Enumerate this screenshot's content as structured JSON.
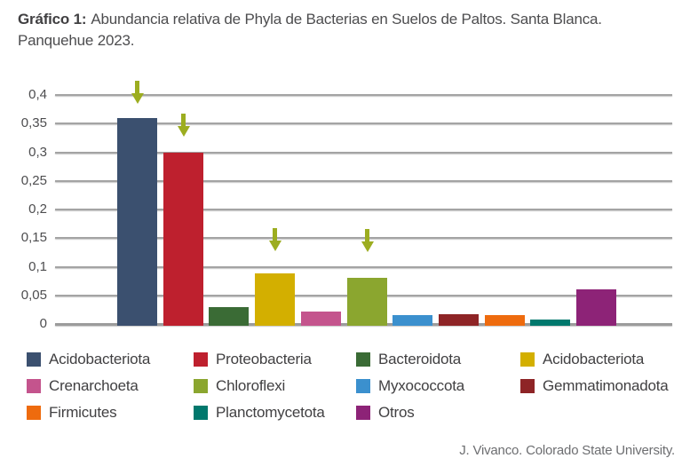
{
  "header": {
    "prefix": "Gráfico 1:",
    "line1": "Abundancia relativa de Phyla de Bacterias en Suelos de Paltos. Santa Blanca.",
    "line2": "Panquehue 2023."
  },
  "footer": {
    "credit": "J. Vivanco. Colorado State University."
  },
  "chart_data": {
    "type": "bar",
    "title": "Gráfico 1: Abundancia relativa de Phyla de Bacterias en Suelos de Paltos. Santa Blanca. Panquehue 2023.",
    "xlabel": "",
    "ylabel": "",
    "ylim": [
      0,
      0.4
    ],
    "ytick_step": 0.05,
    "decimal_separator": ",",
    "grid": true,
    "legend_position": "bottom",
    "yticks": [
      "0,4",
      "0,35",
      "0,3",
      "0,25",
      "0,2",
      "0,15",
      "0,1",
      "0,05",
      "0"
    ],
    "arrow_color": "#9cad20",
    "arrow_marked_bars": [
      "Acidobacteriota",
      "Proteobacteria",
      "Acidobacteriota",
      "Chloroflexi"
    ],
    "items": [
      {
        "name": "Acidobacteriota",
        "value": 0.36,
        "color": "#3b506f",
        "arrow": true
      },
      {
        "name": "Proteobacteria",
        "value": 0.3,
        "color": "#be202e",
        "arrow": true
      },
      {
        "name": "Bacteroidota",
        "value": 0.03,
        "color": "#3a6b35",
        "arrow": false
      },
      {
        "name": "Acidobacteriota",
        "value": 0.088,
        "color": "#d3af00",
        "arrow": true
      },
      {
        "name": "Crenarchoeta",
        "value": 0.021,
        "color": "#c4548d",
        "arrow": false
      },
      {
        "name": "Chloroflexi",
        "value": 0.081,
        "color": "#8ba62f",
        "arrow": true
      },
      {
        "name": "Myxococcota",
        "value": 0.015,
        "color": "#3b90ce",
        "arrow": false
      },
      {
        "name": "Gemmatimonadota",
        "value": 0.017,
        "color": "#8e2426",
        "arrow": false
      },
      {
        "name": "Firmicutes",
        "value": 0.015,
        "color": "#ee6b0e",
        "arrow": false
      },
      {
        "name": "Planctomycetota",
        "value": 0.007,
        "color": "#00786d",
        "arrow": false
      },
      {
        "name": "Otros",
        "value": 0.06,
        "color": "#8d2377",
        "arrow": false
      }
    ]
  }
}
